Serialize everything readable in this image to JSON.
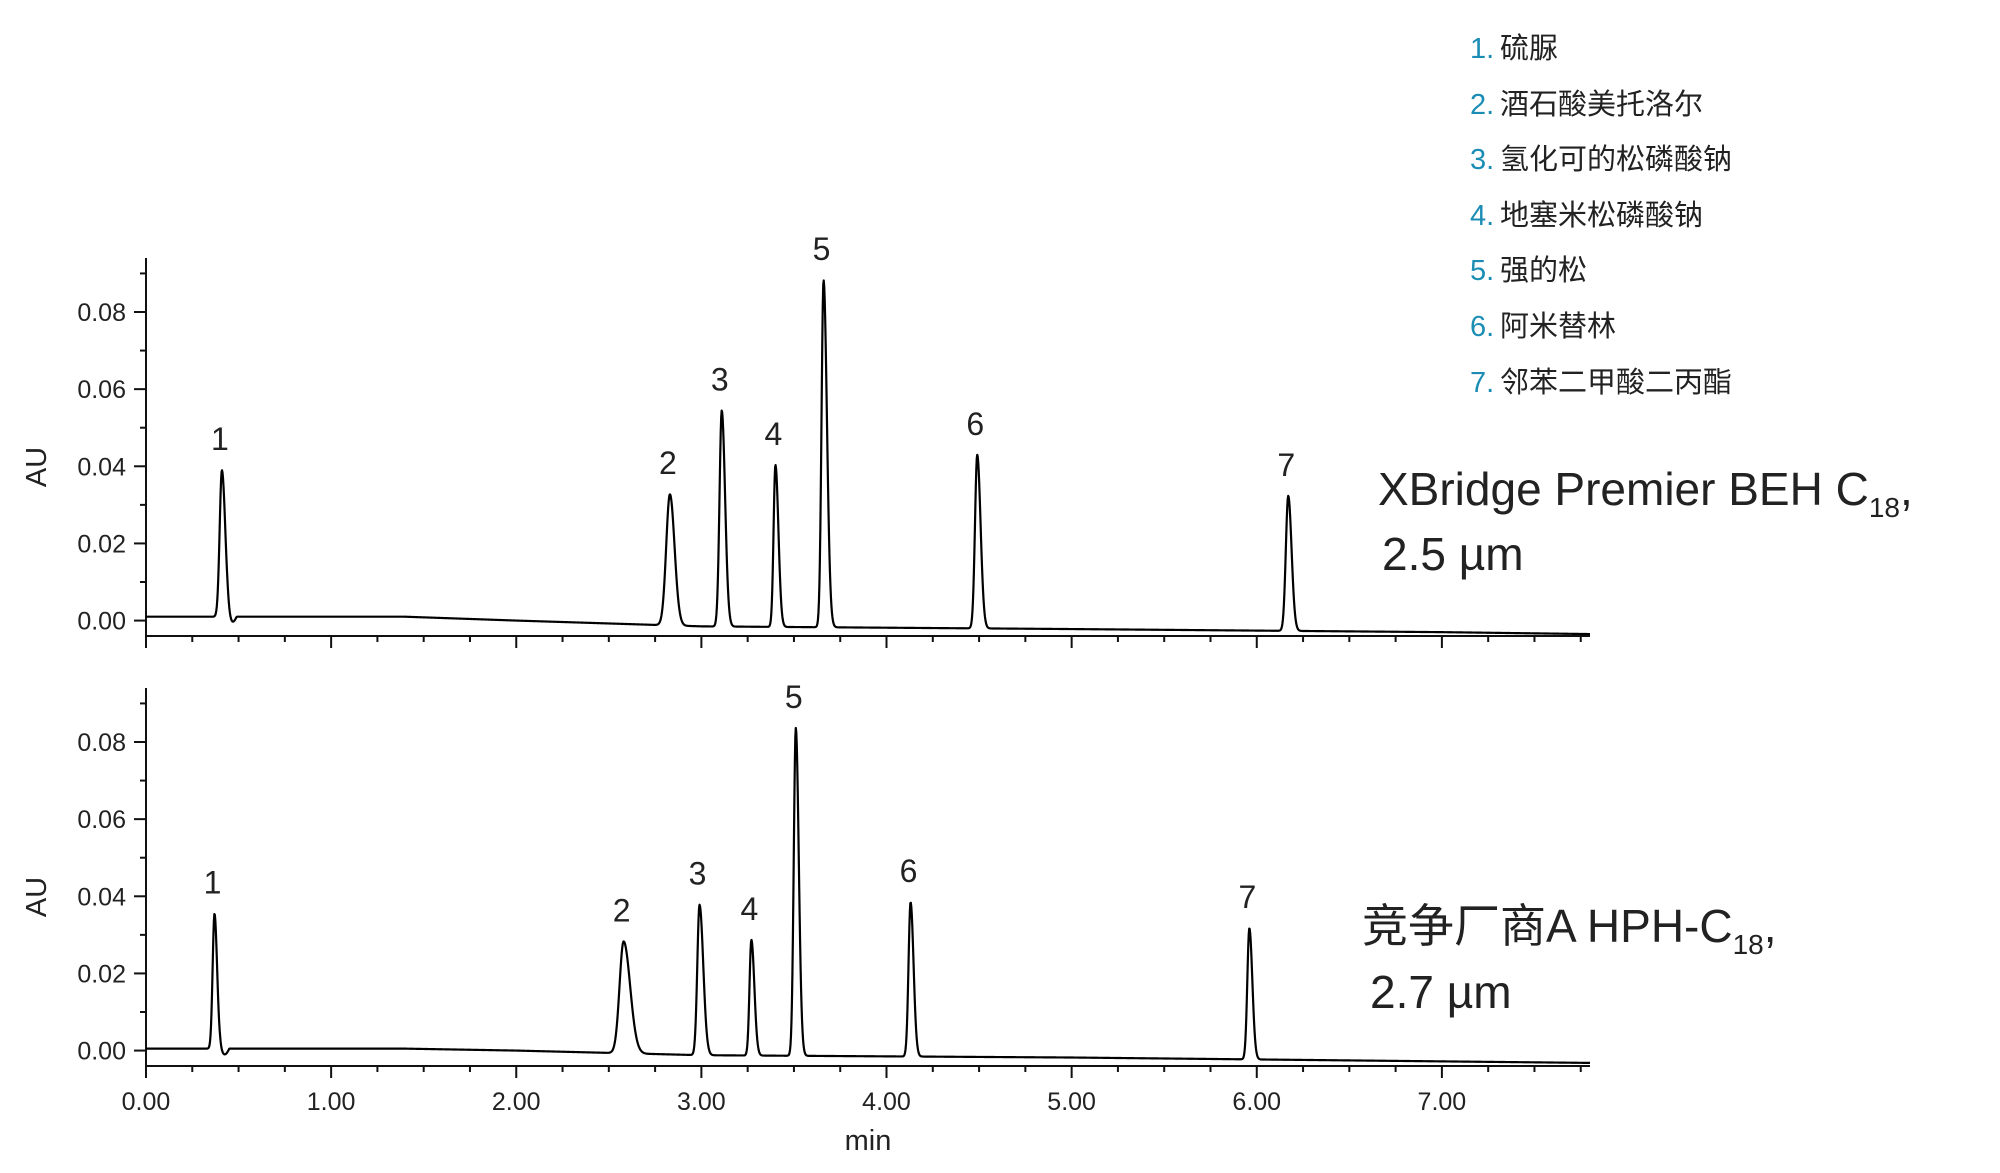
{
  "chart_data": [
    {
      "type": "line",
      "panel": "top",
      "ylabel": "AU",
      "ylim": [
        -0.004,
        0.094
      ],
      "yticks": [
        "0.00",
        "0.02",
        "0.04",
        "0.06",
        "0.08"
      ],
      "xlim": [
        0,
        7.8
      ],
      "column_label": {
        "main": "XBridge Premier BEH C",
        "sub": "18",
        "tail": ",",
        "line2": "2.5 µm"
      },
      "baseline": [
        [
          0,
          0.001
        ],
        [
          1.4,
          0.001
        ],
        [
          2.0,
          0.0
        ],
        [
          3.0,
          -0.0015
        ],
        [
          5.0,
          -0.0022
        ],
        [
          7.0,
          -0.003
        ],
        [
          7.8,
          -0.0035
        ]
      ],
      "peaks": [
        {
          "label": "1",
          "rt": 0.41,
          "height": 0.038,
          "width": 0.012,
          "tail": 0.018
        },
        {
          "label": "2",
          "rt": 2.83,
          "height": 0.034,
          "width": 0.02,
          "tail": 0.025
        },
        {
          "label": "3",
          "rt": 3.11,
          "height": 0.056,
          "width": 0.012,
          "tail": 0.018
        },
        {
          "label": "4",
          "rt": 3.4,
          "height": 0.042,
          "width": 0.01,
          "tail": 0.016
        },
        {
          "label": "5",
          "rt": 3.66,
          "height": 0.09,
          "width": 0.011,
          "tail": 0.018
        },
        {
          "label": "6",
          "rt": 4.49,
          "height": 0.045,
          "width": 0.012,
          "tail": 0.018
        },
        {
          "label": "7",
          "rt": 6.17,
          "height": 0.035,
          "width": 0.013,
          "tail": 0.018
        }
      ]
    },
    {
      "type": "line",
      "panel": "bottom",
      "xlabel": "min",
      "ylabel": "AU",
      "ylim": [
        -0.004,
        0.094
      ],
      "yticks": [
        "0.00",
        "0.02",
        "0.04",
        "0.06",
        "0.08"
      ],
      "xlim": [
        0,
        7.8
      ],
      "xticks": [
        "0.00",
        "1.00",
        "2.00",
        "3.00",
        "4.00",
        "5.00",
        "6.00",
        "7.00"
      ],
      "column_label": {
        "main": "竞争厂商A HPH-C",
        "sub": "18",
        "tail": ",",
        "line2": "2.7 µm"
      },
      "baseline": [
        [
          0,
          0.0005
        ],
        [
          1.4,
          0.0005
        ],
        [
          2.0,
          0.0
        ],
        [
          3.0,
          -0.0012
        ],
        [
          5.0,
          -0.0018
        ],
        [
          7.0,
          -0.0028
        ],
        [
          7.8,
          -0.0032
        ]
      ],
      "peaks": [
        {
          "label": "1",
          "rt": 0.37,
          "height": 0.035,
          "width": 0.01,
          "tail": 0.014
        },
        {
          "label": "2",
          "rt": 2.58,
          "height": 0.029,
          "width": 0.022,
          "tail": 0.035
        },
        {
          "label": "3",
          "rt": 2.99,
          "height": 0.039,
          "width": 0.012,
          "tail": 0.02
        },
        {
          "label": "4",
          "rt": 3.27,
          "height": 0.03,
          "width": 0.01,
          "tail": 0.016
        },
        {
          "label": "5",
          "rt": 3.51,
          "height": 0.085,
          "width": 0.011,
          "tail": 0.016
        },
        {
          "label": "6",
          "rt": 4.13,
          "height": 0.04,
          "width": 0.011,
          "tail": 0.016
        },
        {
          "label": "7",
          "rt": 5.96,
          "height": 0.034,
          "width": 0.011,
          "tail": 0.016
        }
      ]
    }
  ],
  "legend": {
    "colors": {
      "number": "#1b8db5",
      "text": "#222222"
    },
    "items": [
      {
        "num": "1.",
        "name": "硫脲"
      },
      {
        "num": "2.",
        "name": "酒石酸美托洛尔"
      },
      {
        "num": "3.",
        "name": "氢化可的松磷酸钠"
      },
      {
        "num": "4.",
        "name": "地塞米松磷酸钠"
      },
      {
        "num": "5.",
        "name": "强的松"
      },
      {
        "num": "6.",
        "name": "阿米替林"
      },
      {
        "num": "7.",
        "name": "邻苯二甲酸二丙酯"
      }
    ]
  }
}
